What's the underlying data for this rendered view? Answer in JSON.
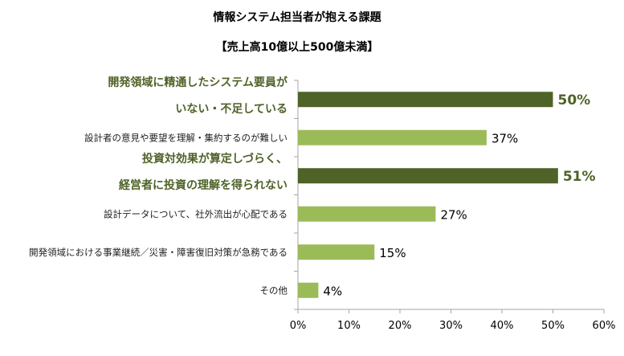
{
  "chart_data": {
    "type": "bar",
    "orientation": "horizontal",
    "title": "情報システム担当者が抱える課題",
    "subtitle": "【売上高10億以上500億未満】",
    "categories": [
      [
        "開発領域に精通したシステム要員が",
        "いない・不足している"
      ],
      [
        "設計者の意見や要望を理解・集約するのが難しい"
      ],
      [
        "投資対効果が算定しづらく、",
        "経営者に投資の理解を得られない"
      ],
      [
        "設計データについて、社外流出が心配である"
      ],
      [
        "開発領域における事業継続／災害・障害復旧対策が急務である"
      ],
      [
        "その他"
      ]
    ],
    "values": [
      50,
      37,
      51,
      27,
      15,
      4
    ],
    "highlighted": [
      true,
      false,
      true,
      false,
      false,
      false
    ],
    "data_labels": [
      "50%",
      "37%",
      "51%",
      "27%",
      "15%",
      "4%"
    ],
    "xlim": [
      0,
      60
    ],
    "xticks": [
      0,
      10,
      20,
      30,
      40,
      50,
      60
    ],
    "xtick_labels": [
      "0%",
      "10%",
      "20%",
      "30%",
      "40%",
      "50%",
      "60%"
    ],
    "grid": false,
    "colors": {
      "highlight": "#4f6228",
      "normal": "#9bbb59",
      "axis": "#a6a6a6"
    }
  }
}
